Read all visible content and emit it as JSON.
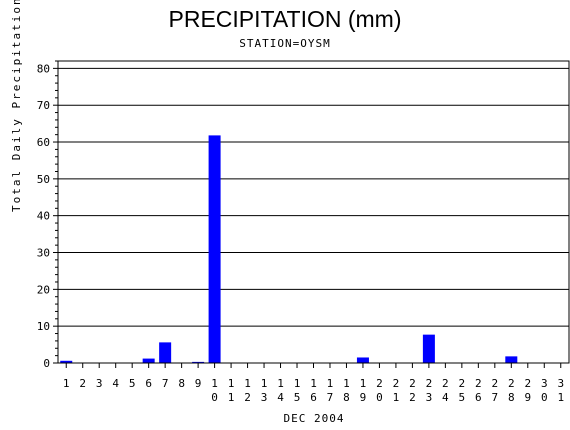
{
  "chart_data": {
    "type": "bar",
    "title": "PRECIPITATION (mm)",
    "subtitle": "STATION=OYSM",
    "xlabel": "DEC 2004",
    "ylabel": "Total Daily Precipitation (mm)",
    "ylim": [
      0,
      82
    ],
    "yticks": [
      0,
      10,
      20,
      30,
      40,
      50,
      60,
      70,
      80
    ],
    "grid": true,
    "categories": [
      "1",
      "2",
      "3",
      "4",
      "5",
      "6",
      "7",
      "8",
      "9",
      "10",
      "11",
      "12",
      "13",
      "14",
      "15",
      "16",
      "17",
      "18",
      "19",
      "20",
      "21",
      "22",
      "23",
      "24",
      "25",
      "26",
      "27",
      "28",
      "29",
      "30",
      "31"
    ],
    "values": [
      0.6,
      0,
      0,
      0,
      0,
      1.2,
      5.6,
      0,
      0.3,
      61.8,
      0,
      0,
      0,
      0,
      0,
      0,
      0,
      0,
      1.5,
      0,
      0,
      0,
      7.7,
      0,
      0,
      0,
      0,
      1.8,
      0,
      0,
      0
    ],
    "bar_color": "#0000ff"
  }
}
